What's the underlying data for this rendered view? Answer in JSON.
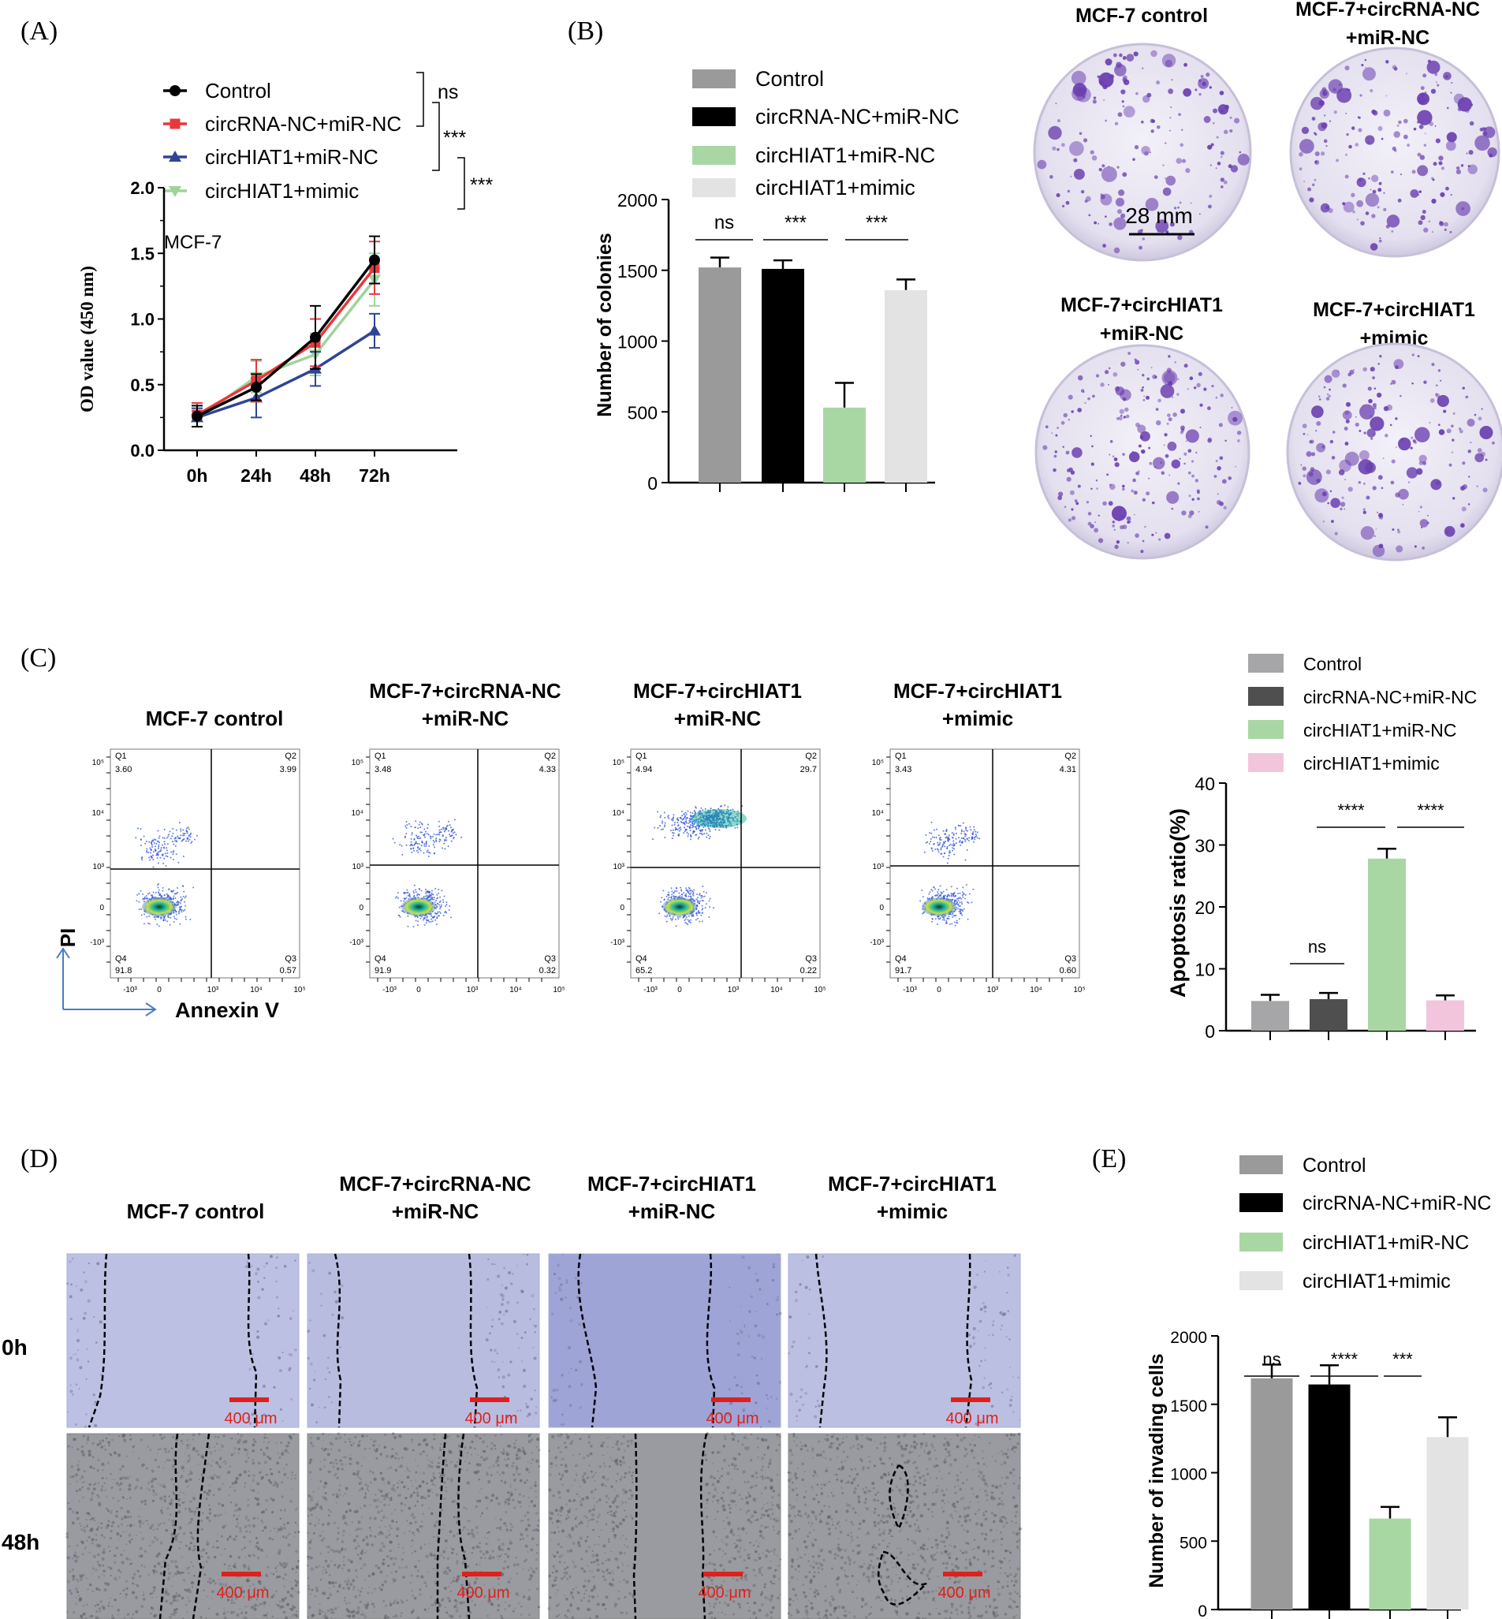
{
  "panel_labels": {
    "a": "(A)",
    "b": "(B)",
    "c": "(C)",
    "d": "(D)",
    "e": "(E)"
  },
  "colors": {
    "control": "#000000",
    "circrna_nc": "#e8383b",
    "circhiat1": "#2e4596",
    "mimic": "#9fd39a",
    "bar_gray": "#9a9a9a",
    "bar_black": "#000000",
    "bar_green": "#a9d7a4",
    "bar_lightgray": "#e3e3e3",
    "bar_darkgray": "#4f4f4f",
    "bar_pink": "#f2c5dc",
    "bar_silver": "#a6a6a8",
    "scale_red": "#e0201c",
    "dish_purple": "#6a3fb0"
  },
  "chart_data": [
    {
      "id": "A",
      "type": "line",
      "title": "MCF-7",
      "xlabel": "",
      "ylabel": "OD value (450 nm)",
      "categories": [
        "0h",
        "24h",
        "48h",
        "72h"
      ],
      "ylim": [
        0,
        2.0
      ],
      "yticks": [
        "0.0",
        "0.5",
        "1.0",
        "1.5",
        "2.0"
      ],
      "series": [
        {
          "name": "Control",
          "values": [
            0.26,
            0.48,
            0.86,
            1.45
          ],
          "errors": [
            0.08,
            0.1,
            0.24,
            0.18
          ],
          "marker": "circle"
        },
        {
          "name": "circRNA-NC+miR-NC",
          "values": [
            0.27,
            0.53,
            0.82,
            1.39
          ],
          "errors": [
            0.09,
            0.16,
            0.18,
            0.2
          ],
          "marker": "square"
        },
        {
          "name": "circHIAT1+miR-NC",
          "values": [
            0.25,
            0.4,
            0.62,
            0.91
          ],
          "errors": [
            0.07,
            0.15,
            0.13,
            0.13
          ],
          "marker": "triangle-up"
        },
        {
          "name": "circHIAT1+mimic",
          "values": [
            0.24,
            0.56,
            0.73,
            1.3
          ],
          "errors": [
            0.06,
            0.12,
            0.16,
            0.2
          ],
          "marker": "triangle-down"
        }
      ],
      "significance": [
        "ns",
        "***",
        "***"
      ]
    },
    {
      "id": "B",
      "type": "bar",
      "ylabel": "Number of colonies",
      "ylim": [
        0,
        2000
      ],
      "yticks": [
        "0",
        "500",
        "1000",
        "1500",
        "2000"
      ],
      "categories": [
        "Control",
        "circRNA-NC+miR-NC",
        "circHIAT1+miR-NC",
        "circHIAT1+mimic"
      ],
      "values": [
        1520,
        1510,
        530,
        1360
      ],
      "errors": [
        70,
        60,
        175,
        75
      ],
      "significance": [
        "ns",
        "***",
        "***"
      ]
    },
    {
      "id": "C",
      "type": "bar",
      "ylabel": "Apoptosis ratio(%)",
      "ylim": [
        0,
        40
      ],
      "yticks": [
        "0",
        "10",
        "20",
        "30",
        "40"
      ],
      "categories": [
        "Control",
        "circRNA-NC+miR-NC",
        "circHIAT1+miR-NC",
        "circHIAT1+mimic"
      ],
      "values": [
        4.8,
        5.1,
        27.8,
        4.9
      ],
      "errors": [
        1.0,
        1.0,
        1.6,
        0.8
      ],
      "significance": [
        "ns",
        "****",
        "****"
      ]
    },
    {
      "id": "E",
      "type": "bar",
      "ylabel": "Number of invading cells",
      "ylim": [
        0,
        2000
      ],
      "yticks": [
        "0",
        "500",
        "1000",
        "1500",
        "2000"
      ],
      "categories": [
        "Control",
        "circRNA-NC+miR-NC",
        "circHIAT1+miR-NC",
        "circHIAT1+mimic"
      ],
      "values": [
        1690,
        1645,
        665,
        1260
      ],
      "errors": [
        100,
        140,
        85,
        145
      ],
      "significance": [
        "ns",
        "****",
        "***"
      ]
    }
  ],
  "colony": {
    "titles": [
      "MCF-7 control",
      "MCF-7+circRNA-NC",
      "+miR-NC",
      "MCF-7+circHIAT1",
      "+miR-NC",
      "MCF-7+circHIAT1",
      "+mimic"
    ],
    "scale": "28 mm"
  },
  "flow": {
    "titles": [
      "MCF-7 control",
      "MCF-7+circRNA-NC",
      "+miR-NC",
      "MCF-7+circHIAT1",
      "+miR-NC",
      "MCF-7+circHIAT1",
      "+mimic"
    ],
    "axis_y": "PI",
    "axis_x": "Annexin V",
    "quad_labels": [
      "Q1",
      "Q2",
      "Q3",
      "Q4"
    ],
    "tick_labels": [
      "10⁵",
      "10⁴",
      "10³",
      "0",
      "-10³",
      "10⁵",
      "10⁴",
      "10³",
      "0",
      "-10³"
    ],
    "plots": [
      {
        "q1": "3.60",
        "q2": "3.99",
        "q3": "0.57",
        "q4": "91.8"
      },
      {
        "q1": "3.48",
        "q2": "4.33",
        "q3": "0.32",
        "q4": "91.9"
      },
      {
        "q1": "4.94",
        "q2": "29.7",
        "q3": "0.22",
        "q4": "65.2"
      },
      {
        "q1": "3.43",
        "q2": "4.31",
        "q3": "0.60",
        "q4": "91.7"
      }
    ]
  },
  "wound": {
    "titles": [
      "MCF-7 control",
      "MCF-7+circRNA-NC",
      "+miR-NC",
      "MCF-7+circHIAT1",
      "+miR-NC",
      "MCF-7+circHIAT1",
      "+mimic"
    ],
    "rows": [
      "0h",
      "48h"
    ],
    "scale": "400 μm"
  }
}
